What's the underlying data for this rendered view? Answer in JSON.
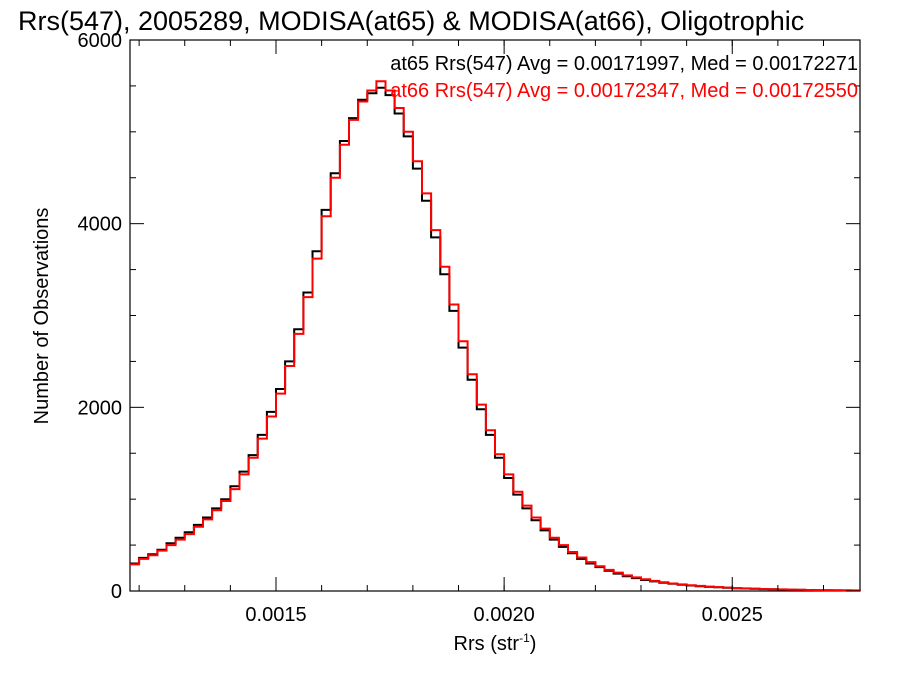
{
  "chart_data": {
    "type": "line",
    "title": "Rrs(547), 2005289, MODISA(at65) & MODISA(at66), Oligotrophic",
    "xlabel": "Rrs (str",
    "xlabel_sup": "-1",
    "xlabel_close": ")",
    "ylabel": "Number of Observations",
    "xlim": [
      0.00118,
      0.00278
    ],
    "ylim": [
      0,
      6000
    ],
    "xticks": [
      0.0015,
      0.002,
      0.0025
    ],
    "xtick_labels": [
      "0.0015",
      "0.0020",
      "0.0025"
    ],
    "yticks": [
      0,
      2000,
      4000,
      6000
    ],
    "ytick_labels": [
      "0",
      "2000",
      "4000",
      "6000"
    ],
    "grid": false,
    "legend_placement": "top-right",
    "series": [
      {
        "name": "at65",
        "color": "#000000",
        "legend": "at65 Rrs(547) Avg = 0.00171997, Med = 0.00172271",
        "x": [
          0.00118,
          0.0012,
          0.00122,
          0.00124,
          0.00126,
          0.00128,
          0.0013,
          0.00132,
          0.00134,
          0.00136,
          0.00138,
          0.0014,
          0.00142,
          0.00144,
          0.00146,
          0.00148,
          0.0015,
          0.00152,
          0.00154,
          0.00156,
          0.00158,
          0.0016,
          0.00162,
          0.00164,
          0.00166,
          0.00168,
          0.0017,
          0.00172,
          0.00174,
          0.00176,
          0.00178,
          0.0018,
          0.00182,
          0.00184,
          0.00186,
          0.00188,
          0.0019,
          0.00192,
          0.00194,
          0.00196,
          0.00198,
          0.002,
          0.00202,
          0.00204,
          0.00206,
          0.00208,
          0.0021,
          0.00212,
          0.00214,
          0.00216,
          0.00218,
          0.0022,
          0.00222,
          0.00224,
          0.00226,
          0.00228,
          0.0023,
          0.00232,
          0.00234,
          0.00236,
          0.00238,
          0.0024,
          0.00242,
          0.00244,
          0.00246,
          0.00248,
          0.0025,
          0.00252,
          0.00254,
          0.00256,
          0.00258,
          0.0026,
          0.00262,
          0.00264,
          0.00266,
          0.00268,
          0.0027,
          0.00272,
          0.00274,
          0.00276,
          0.00278
        ],
        "values": [
          300,
          360,
          400,
          450,
          520,
          580,
          640,
          720,
          800,
          900,
          1000,
          1140,
          1300,
          1480,
          1700,
          1950,
          2200,
          2500,
          2850,
          3250,
          3700,
          4150,
          4550,
          4900,
          5150,
          5350,
          5420,
          5480,
          5400,
          5200,
          4950,
          4600,
          4250,
          3850,
          3450,
          3050,
          2650,
          2300,
          1980,
          1700,
          1450,
          1230,
          1050,
          900,
          770,
          660,
          560,
          480,
          410,
          350,
          300,
          260,
          220,
          190,
          160,
          140,
          120,
          105,
          90,
          78,
          68,
          60,
          52,
          45,
          40,
          35,
          30,
          27,
          24,
          21,
          18,
          16,
          14,
          12,
          10,
          9,
          8,
          7,
          6,
          5,
          4
        ]
      },
      {
        "name": "at66",
        "color": "#ff0000",
        "legend": "at66 Rrs(547) Avg = 0.00172347, Med = 0.00172550",
        "x": [
          0.00118,
          0.0012,
          0.00122,
          0.00124,
          0.00126,
          0.00128,
          0.0013,
          0.00132,
          0.00134,
          0.00136,
          0.00138,
          0.0014,
          0.00142,
          0.00144,
          0.00146,
          0.00148,
          0.0015,
          0.00152,
          0.00154,
          0.00156,
          0.00158,
          0.0016,
          0.00162,
          0.00164,
          0.00166,
          0.00168,
          0.0017,
          0.00172,
          0.00174,
          0.00176,
          0.00178,
          0.0018,
          0.00182,
          0.00184,
          0.00186,
          0.00188,
          0.0019,
          0.00192,
          0.00194,
          0.00196,
          0.00198,
          0.002,
          0.00202,
          0.00204,
          0.00206,
          0.00208,
          0.0021,
          0.00212,
          0.00214,
          0.00216,
          0.00218,
          0.0022,
          0.00222,
          0.00224,
          0.00226,
          0.00228,
          0.0023,
          0.00232,
          0.00234,
          0.00236,
          0.00238,
          0.0024,
          0.00242,
          0.00244,
          0.00246,
          0.00248,
          0.0025,
          0.00252,
          0.00254,
          0.00256,
          0.00258,
          0.0026,
          0.00262,
          0.00264,
          0.00266,
          0.00268,
          0.0027,
          0.00272,
          0.00274,
          0.00276,
          0.00278
        ],
        "values": [
          290,
          350,
          390,
          440,
          500,
          560,
          620,
          700,
          780,
          880,
          980,
          1110,
          1270,
          1450,
          1660,
          1900,
          2150,
          2450,
          2800,
          3200,
          3620,
          4080,
          4500,
          4860,
          5130,
          5330,
          5450,
          5550,
          5450,
          5260,
          5000,
          4680,
          4330,
          3930,
          3530,
          3120,
          2720,
          2360,
          2030,
          1750,
          1490,
          1270,
          1080,
          930,
          800,
          680,
          580,
          500,
          425,
          365,
          315,
          270,
          230,
          200,
          170,
          148,
          128,
          110,
          95,
          82,
          72,
          63,
          55,
          48,
          42,
          37,
          32,
          28,
          25,
          22,
          19,
          17,
          15,
          13,
          11,
          10,
          9,
          8,
          7,
          6,
          5
        ]
      }
    ]
  }
}
